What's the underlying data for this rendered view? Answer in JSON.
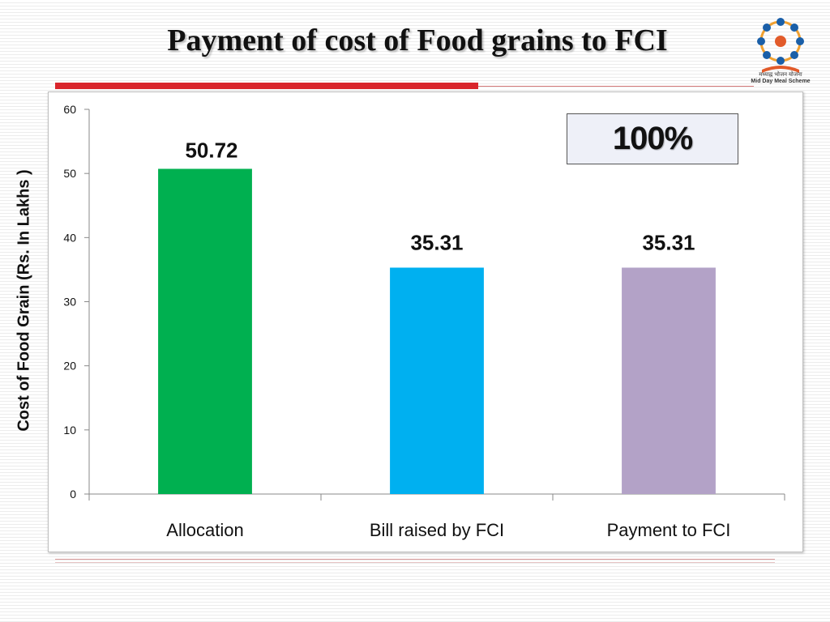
{
  "slide": {
    "title": "Payment of cost of Food grains to FCI",
    "logo_text_hindi": "मध्याह्न भोजन योजना",
    "logo_text_english": "Mid Day Meal Scheme",
    "callout": "100%"
  },
  "chart_data": {
    "type": "bar",
    "categories": [
      "Allocation",
      "Bill raised by FCI",
      "Payment to FCI"
    ],
    "values": [
      50.72,
      35.31,
      35.31
    ],
    "data_labels": [
      "50.72",
      "35.31",
      "35.31"
    ],
    "colors": [
      "#00b050",
      "#00b0f0",
      "#b3a2c7"
    ],
    "title": "",
    "xlabel": "",
    "ylabel": "Cost of Food Grain (Rs. In Lakhs )",
    "ylim": [
      0,
      60
    ],
    "yticks": [
      0,
      10,
      20,
      30,
      40,
      50,
      60
    ],
    "grid": false,
    "legend": "none"
  }
}
